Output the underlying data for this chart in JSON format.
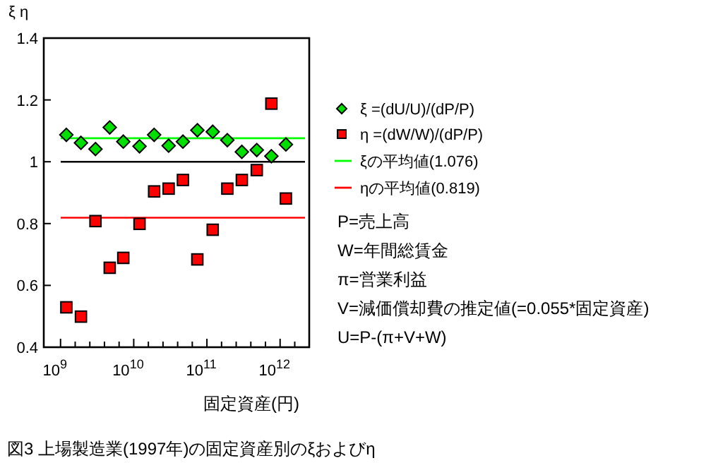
{
  "chart_data": {
    "type": "scatter",
    "ylabel": "ξ η",
    "xlabel": "固定資産(円)",
    "log": "x",
    "xlim": [
      590000000.0,
      2500000000000.0
    ],
    "ylim": [
      0.4,
      1.4
    ],
    "xticks": [
      {
        "value": 1000000000.0,
        "label": "10$^{9}$"
      },
      {
        "value": 1585000000.0,
        "label": null
      },
      {
        "value": 2512000000.0,
        "label": null
      },
      {
        "value": 3981000000.0,
        "label": null
      },
      {
        "value": 6310000000.0,
        "label": null
      },
      {
        "value": 10000000000.0,
        "label": "10$^{10}$"
      },
      {
        "value": 15850000000.0,
        "label": null
      },
      {
        "value": 25120000000.0,
        "label": null
      },
      {
        "value": 39810000000.0,
        "label": null
      },
      {
        "value": 63100000000.0,
        "label": null
      },
      {
        "value": 100000000000.0,
        "label": "10$^{11}$"
      },
      {
        "value": 158500000000.0,
        "label": null
      },
      {
        "value": 251200000000.0,
        "label": null
      },
      {
        "value": 398100000000.0,
        "label": null
      },
      {
        "value": 631000000000.0,
        "label": null
      },
      {
        "value": 1000000000000.0,
        "label": "10$^{12}$"
      },
      {
        "value": 1585000000000.0,
        "label": null
      }
    ],
    "yticks": [
      0.4,
      0.6,
      0.8,
      {
        "value": 1.0,
        "label": "1"
      },
      1.2,
      1.4
    ],
    "grid": false,
    "legend": "right",
    "x": [
      1200000000.0,
      1900000000.0,
      3000000000.0,
      4700000000.0,
      7200000000.0,
      12000000000.0,
      19000000000.0,
      30000000000.0,
      47000000000.0,
      74000000000.0,
      120000000000.0,
      190000000000.0,
      300000000000.0,
      480000000000.0,
      760000000000.0,
      1200000000000.0
    ],
    "series": [
      {
        "name": "ξ =(dU/U)/(dP/P)",
        "type": "scatter",
        "marker": "diamond",
        "color": "#00e000",
        "values": [
          1.087,
          1.061,
          1.041,
          1.111,
          1.065,
          1.05,
          1.087,
          1.052,
          1.065,
          1.102,
          1.097,
          1.07,
          1.032,
          1.038,
          1.018,
          1.056
        ]
      },
      {
        "name": "η =(dW/W)/(dP/P)",
        "type": "scatter",
        "marker": "square",
        "color": "#ff0000",
        "values": [
          0.529,
          0.499,
          0.808,
          0.657,
          0.689,
          0.799,
          0.904,
          0.913,
          0.941,
          0.684,
          0.78,
          0.913,
          0.941,
          0.973,
          1.188,
          0.881
        ]
      }
    ],
    "ref_lines": [
      {
        "axis": "y",
        "value": 1,
        "color": "#000000"
      },
      {
        "axis": "y",
        "value": 1.076,
        "color": "#00ff00",
        "label": "ξの平均値(1.076)"
      },
      {
        "axis": "y",
        "value": 0.819,
        "color": "#ff0000",
        "label": "ηの平均値(0.819)"
      }
    ],
    "annotations": [
      "P=売上高",
      "W=年間総賃金",
      "π=営業利益",
      "V=減価償却費の推定値(=0.055*固定資産)",
      "U=P-(π+V+W)",
      "図3  上場製造業(1997年)の固定資産別のξおよびη"
    ]
  }
}
